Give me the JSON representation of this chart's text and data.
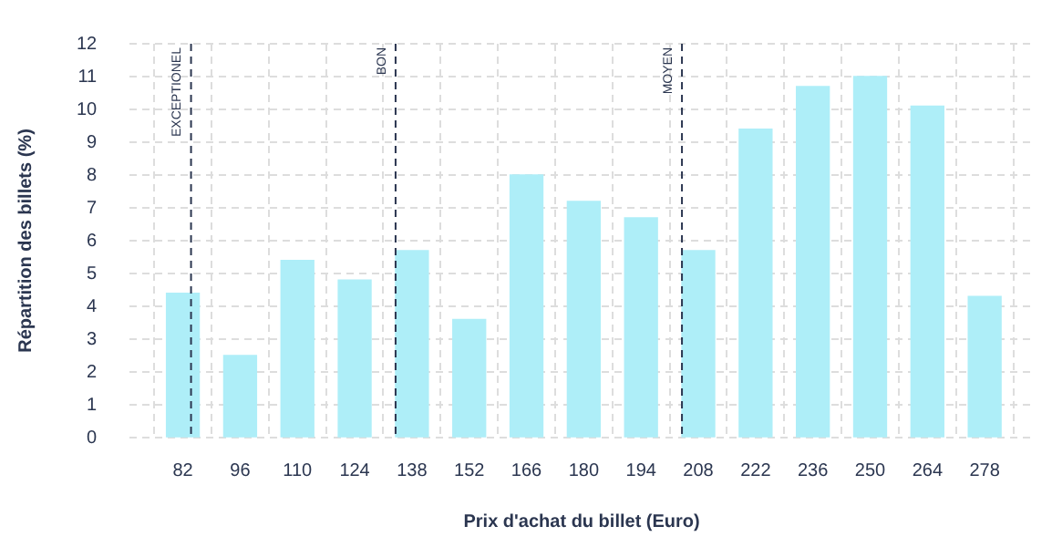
{
  "chart_data": {
    "type": "bar",
    "xlabel": "Prix d'achat du billet (Euro)",
    "ylabel": "Répartition des billets (%)",
    "x": [
      82,
      96,
      110,
      124,
      138,
      152,
      166,
      180,
      194,
      208,
      222,
      236,
      250,
      264,
      278
    ],
    "values": [
      4.4,
      2.5,
      5.4,
      4.8,
      5.7,
      3.6,
      8.0,
      7.2,
      6.7,
      5.7,
      9.4,
      10.7,
      11.0,
      10.1,
      4.3
    ],
    "color": "#aeeef8",
    "xlim": [
      69,
      290
    ],
    "xticks": [
      82,
      96,
      110,
      124,
      138,
      152,
      166,
      180,
      194,
      208,
      222,
      236,
      250,
      264,
      278
    ],
    "ylim": [
      0,
      12
    ],
    "yticks": [
      0,
      1,
      2,
      3,
      4,
      5,
      6,
      7,
      8,
      9,
      10,
      11,
      12
    ],
    "grid": true,
    "legend": false,
    "ref_lines": [
      {
        "axis": "x",
        "value": 84,
        "label": "EXCEPTIONEL",
        "color": "#2b3650",
        "line_style": "dashed"
      },
      {
        "axis": "x",
        "value": 134,
        "label": "BON",
        "color": "#2b3650",
        "line_style": "dashed"
      },
      {
        "axis": "x",
        "value": 204,
        "label": "MOYEN",
        "color": "#2b3650",
        "line_style": "dashed"
      }
    ]
  }
}
